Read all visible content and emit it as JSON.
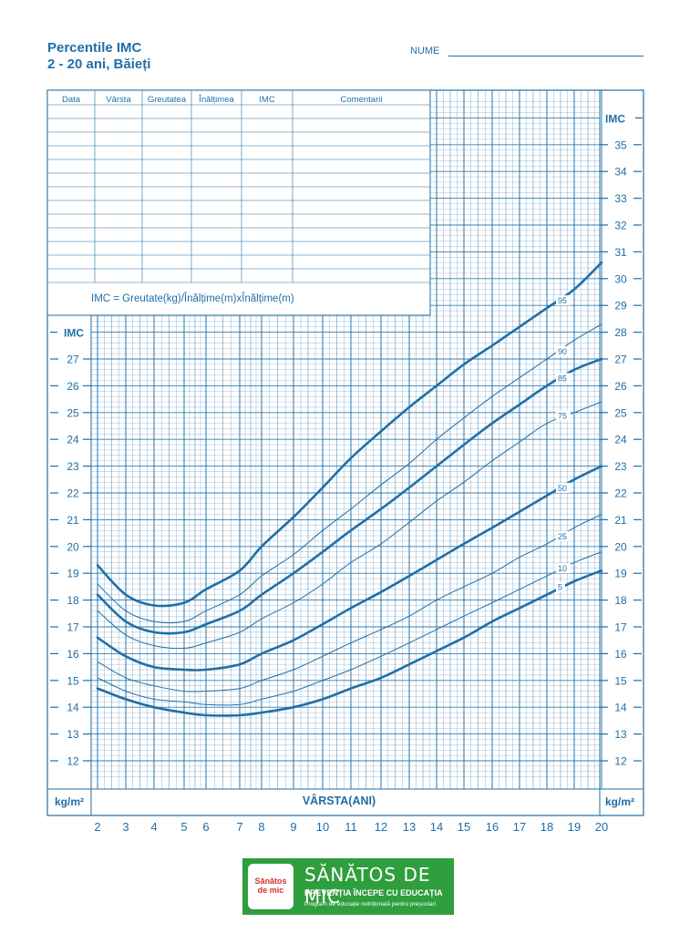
{
  "header": {
    "title_line1": "Percentile IMC",
    "title_line2": "2 - 20 ani, Băieți",
    "name_label": "NUME"
  },
  "table": {
    "columns": [
      "Data",
      "Vârsta",
      "Greutatea",
      "Înălțimea",
      "IMC",
      "Comentarii"
    ],
    "formula": "IMC = Greutate(kg)/Înălțime(m)xÎnălțime(m)"
  },
  "chart_data": {
    "type": "line",
    "xlabel": "VÂRSTA(ANI)",
    "ylabel": "IMC",
    "unit_label": "kg/m²",
    "xlim": [
      2,
      20
    ],
    "ylim_left": [
      12,
      28
    ],
    "ylim_right": [
      12,
      36
    ],
    "x_ticks": [
      2,
      3,
      4,
      5,
      6,
      7,
      8,
      9,
      10,
      11,
      12,
      13,
      14,
      15,
      16,
      17,
      18,
      19,
      20
    ],
    "y_ticks_left": [
      12,
      13,
      14,
      15,
      16,
      17,
      18,
      19,
      20,
      21,
      22,
      23,
      24,
      25,
      26,
      27
    ],
    "y_ticks_right": [
      12,
      13,
      14,
      15,
      16,
      17,
      18,
      19,
      20,
      21,
      22,
      23,
      24,
      25,
      26,
      27,
      28,
      29,
      30,
      31,
      32,
      33,
      34,
      35
    ],
    "grid": true,
    "x": [
      2,
      3,
      4,
      5,
      6,
      7,
      8,
      9,
      10,
      11,
      12,
      13,
      14,
      15,
      16,
      17,
      18,
      19,
      20
    ],
    "series": [
      {
        "name": "95",
        "bold": true,
        "values": [
          19.3,
          18.2,
          17.8,
          17.9,
          18.4,
          19.1,
          20.0,
          21.1,
          22.2,
          23.3,
          24.3,
          25.2,
          26.0,
          26.8,
          27.5,
          28.2,
          28.9,
          29.6,
          30.6
        ]
      },
      {
        "name": "90",
        "bold": false,
        "values": [
          18.6,
          17.6,
          17.2,
          17.2,
          17.6,
          18.2,
          18.9,
          19.7,
          20.6,
          21.4,
          22.3,
          23.1,
          24.0,
          24.8,
          25.6,
          26.3,
          27.0,
          27.7,
          28.3
        ]
      },
      {
        "name": "85",
        "bold": true,
        "values": [
          18.2,
          17.2,
          16.8,
          16.8,
          17.1,
          17.6,
          18.2,
          19.0,
          19.8,
          20.6,
          21.4,
          22.2,
          23.0,
          23.8,
          24.6,
          25.3,
          26.0,
          26.6,
          27.0
        ]
      },
      {
        "name": "75",
        "bold": false,
        "values": [
          17.6,
          16.7,
          16.3,
          16.2,
          16.4,
          16.8,
          17.3,
          17.9,
          18.6,
          19.4,
          20.1,
          20.9,
          21.7,
          22.4,
          23.2,
          23.9,
          24.6,
          25.0,
          25.4
        ]
      },
      {
        "name": "50",
        "bold": true,
        "values": [
          16.6,
          15.9,
          15.5,
          15.4,
          15.4,
          15.6,
          16.0,
          16.5,
          17.1,
          17.7,
          18.3,
          18.9,
          19.5,
          20.1,
          20.7,
          21.3,
          21.9,
          22.5,
          23.0
        ]
      },
      {
        "name": "25",
        "bold": false,
        "values": [
          15.7,
          15.1,
          14.8,
          14.6,
          14.6,
          14.7,
          15.0,
          15.4,
          15.9,
          16.4,
          16.9,
          17.4,
          18.0,
          18.5,
          19.0,
          19.6,
          20.1,
          20.7,
          21.2
        ]
      },
      {
        "name": "10",
        "bold": false,
        "values": [
          15.1,
          14.6,
          14.3,
          14.2,
          14.1,
          14.1,
          14.3,
          14.6,
          15.0,
          15.4,
          15.9,
          16.4,
          16.9,
          17.4,
          17.9,
          18.4,
          18.9,
          19.4,
          19.8
        ]
      },
      {
        "name": "5",
        "bold": true,
        "values": [
          14.7,
          14.3,
          14.0,
          13.8,
          13.7,
          13.7,
          13.8,
          14.0,
          14.3,
          14.7,
          15.1,
          15.6,
          16.1,
          16.6,
          17.2,
          17.7,
          18.2,
          18.7,
          19.1
        ]
      }
    ]
  },
  "logo": {
    "badge_text": "Sănătos de mic",
    "name": "SĂNĂTOS DE MIC",
    "slogan": "PREVENȚIA ÎNCEPE CU EDUCAȚIA",
    "subtitle": "Program de educație nutrițională pentru preșcolari"
  }
}
